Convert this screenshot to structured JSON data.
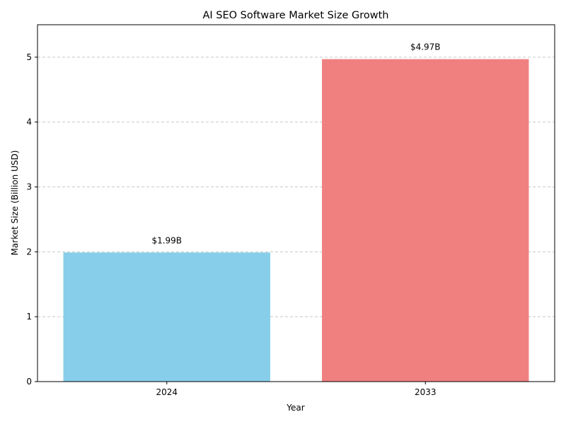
{
  "chart_data": {
    "type": "bar",
    "title": "AI SEO Software Market Size Growth",
    "xlabel": "Year",
    "ylabel": "Market Size (Billion USD)",
    "categories": [
      "2024",
      "2033"
    ],
    "values": [
      1.99,
      4.97
    ],
    "data_labels": [
      "$1.99B",
      "$4.97B"
    ],
    "colors": [
      "#87CEEB",
      "#F08080"
    ],
    "ylim": [
      0,
      5.5
    ],
    "yticks": [
      0,
      1,
      2,
      3,
      4,
      5
    ],
    "grid": "y-dashed",
    "legend": "none"
  }
}
